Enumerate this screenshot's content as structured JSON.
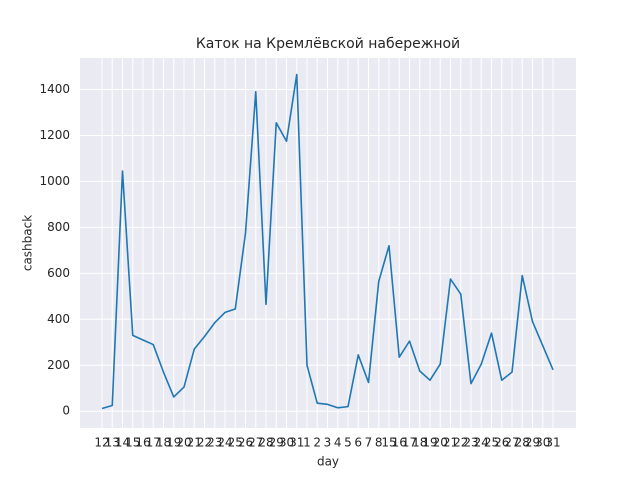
{
  "chart_data": {
    "type": "line",
    "title": "Каток на Кремлёвской набережной",
    "x_label": "day",
    "y_label": "cashback",
    "categories": [
      "12",
      "13",
      "14",
      "15",
      "16",
      "17",
      "18",
      "19",
      "20",
      "21",
      "22",
      "23",
      "24",
      "25",
      "26",
      "27",
      "28",
      "29",
      "30",
      "31",
      "1",
      "2",
      "3",
      "4",
      "5",
      "6",
      "7",
      "8",
      "15",
      "16",
      "17",
      "18",
      "19",
      "20",
      "21",
      "22",
      "23",
      "24",
      "25",
      "26",
      "27",
      "28",
      "29",
      "30",
      "31"
    ],
    "series": [
      {
        "name": "cashback",
        "color": "#1f77b4",
        "values": [
          12,
          25,
          1045,
          330,
          310,
          290,
          170,
          62,
          105,
          270,
          325,
          385,
          430,
          445,
          775,
          1390,
          465,
          1255,
          1175,
          1465,
          200,
          35,
          30,
          15,
          20,
          245,
          125,
          565,
          720,
          235,
          305,
          175,
          135,
          205,
          575,
          510,
          120,
          205,
          340,
          135,
          170,
          590,
          390,
          285,
          180
        ]
      }
    ],
    "ylim": [
      -73,
      1537
    ],
    "yticks": [
      0,
      200,
      400,
      600,
      800,
      1000,
      1200,
      1400
    ],
    "grid": true
  }
}
